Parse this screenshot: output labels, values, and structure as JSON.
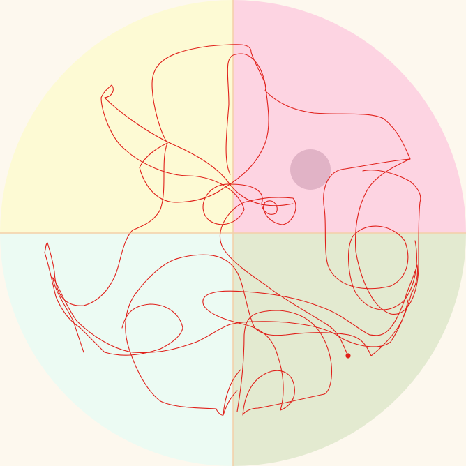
{
  "colors": {
    "background": "#fdf8ee",
    "quadrant_top_left": "#fdfad4",
    "quadrant_top_right": "#fdd4e2",
    "quadrant_bottom_left": "#ecfbf3",
    "quadrant_bottom_right": "#e3ead0",
    "divider": "#f3cfa8",
    "trail": "#e0201a",
    "end_dot": "#e0201a",
    "goal_disc": "#e1b3c6"
  },
  "icons": {
    "goal": "goal-disc-icon",
    "agent": "agent-dot-icon"
  }
}
